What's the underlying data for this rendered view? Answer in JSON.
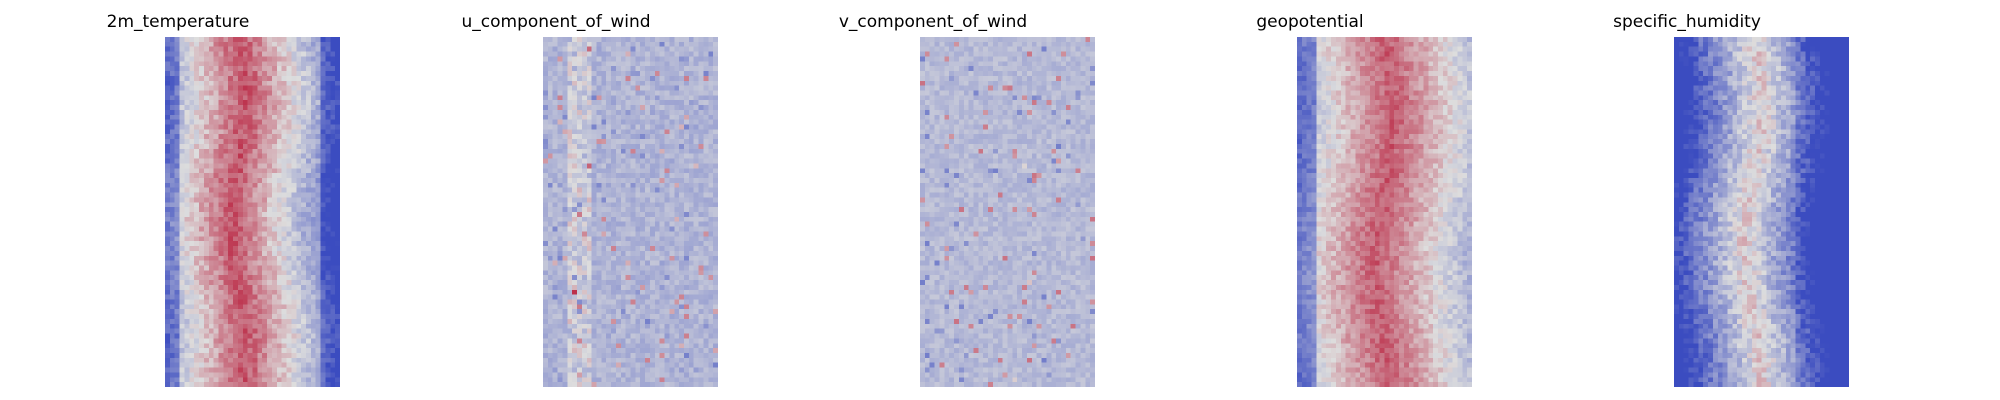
{
  "chart_data": {
    "type": "heatmap",
    "colormap": "coolwarm",
    "colors": {
      "low": "#3b4cc0",
      "mid": "#dddddd",
      "high": "#b40426"
    },
    "panels": [
      {
        "title": "2m_temperature",
        "pattern": "temperature"
      },
      {
        "title": "u_component_of_wind",
        "pattern": "uwind"
      },
      {
        "title": "v_component_of_wind",
        "pattern": "vwind"
      },
      {
        "title": "geopotential",
        "pattern": "geopotential"
      },
      {
        "title": "specific_humidity",
        "pattern": "humidity"
      }
    ]
  }
}
